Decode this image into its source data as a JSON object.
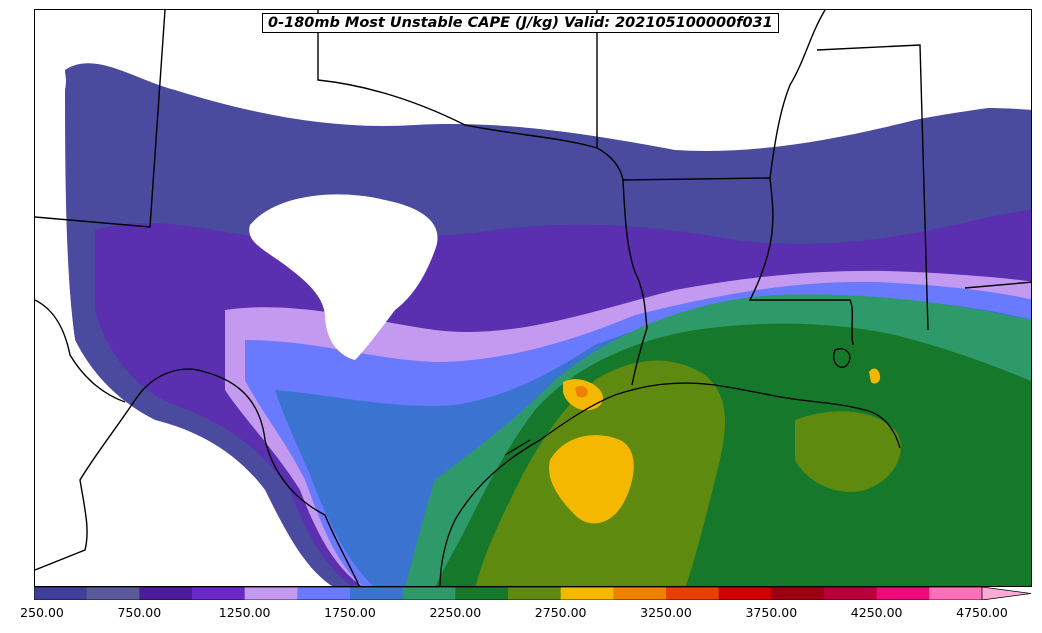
{
  "title": "0-180mb Most Unstable CAPE (J/kg) Valid: 202105100000f031",
  "colorbar": {
    "colors": [
      "#3f3f9a",
      "#5a5a9a",
      "#4b1c9c",
      "#6a28c8",
      "#c39af0",
      "#6a7aff",
      "#3a74d0",
      "#2e9a6a",
      "#15782a",
      "#5f8a10",
      "#f5b800",
      "#f08000",
      "#e84000",
      "#d00000",
      "#9a0010",
      "#b8003c",
      "#ee0a78",
      "#ff70b8"
    ],
    "tick_labels": [
      "250.00",
      "750.00",
      "1250.00",
      "1750.00",
      "2250.00",
      "2750.00",
      "3250.00",
      "3750.00",
      "4250.00",
      "4750.00"
    ],
    "extend": "max",
    "extend_color": "#ffaad6"
  }
}
